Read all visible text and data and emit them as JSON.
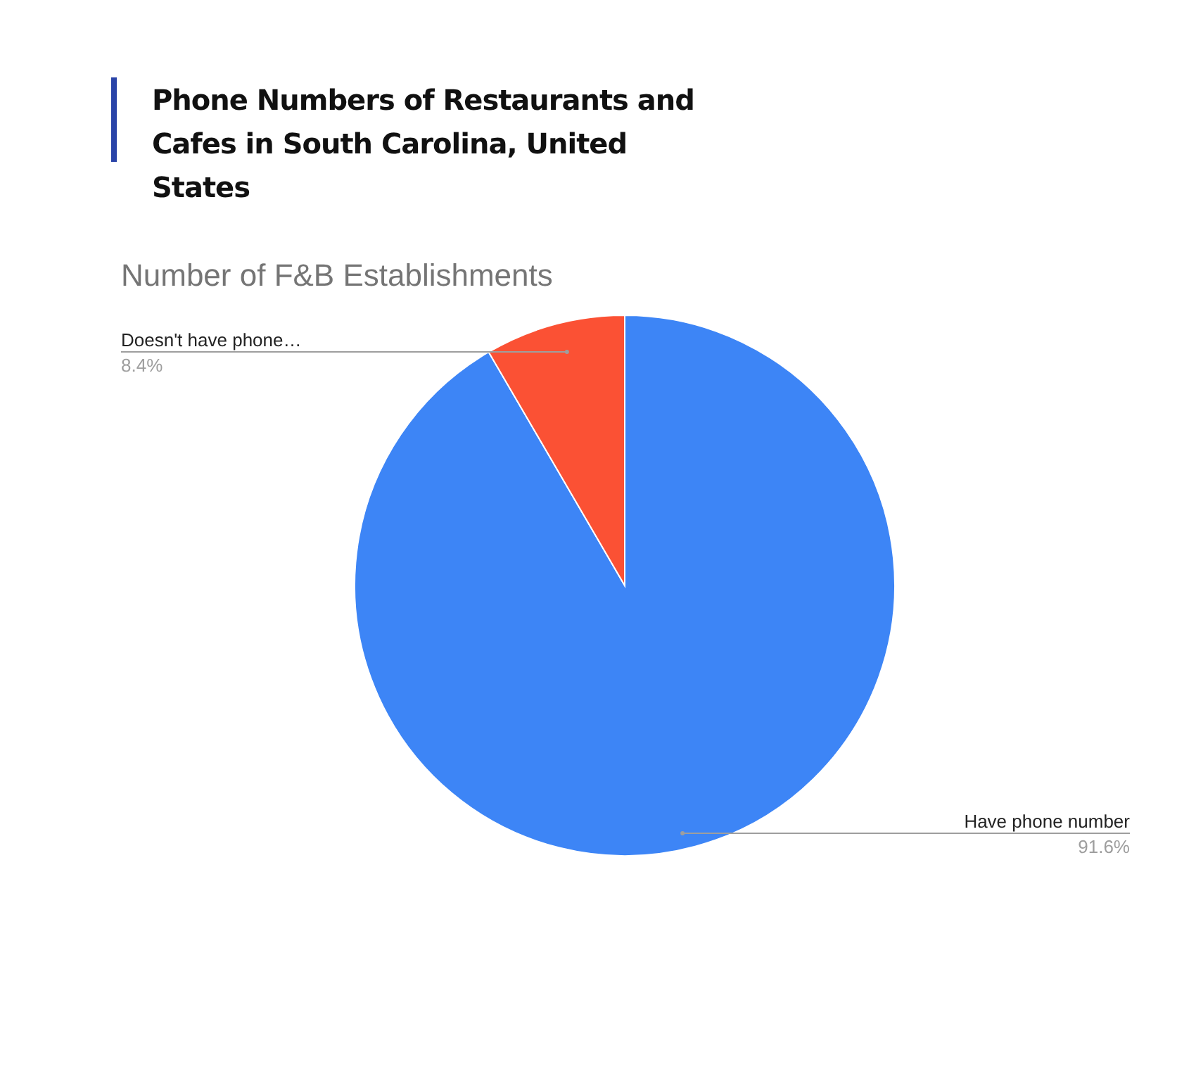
{
  "chart_data": {
    "type": "pie",
    "title": "Phone Numbers of Restaurants and Cafes in South Carolina, United States",
    "subtitle": "Number of F&B Establishments",
    "categories": [
      "Have phone number",
      "Doesn't have phone…"
    ],
    "values": [
      91.6,
      8.4
    ],
    "colors": [
      "#3d85f6",
      "#fb5134"
    ],
    "value_labels": [
      "91.6%",
      "8.4%"
    ]
  }
}
